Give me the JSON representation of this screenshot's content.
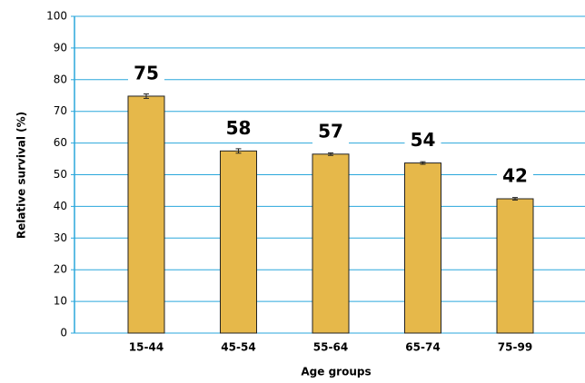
{
  "chart_data": {
    "type": "bar",
    "x_label": "Age groups",
    "y_label": "Relative survival (%)",
    "categories": [
      "15-44",
      "45-54",
      "55-64",
      "65-74",
      "75-99"
    ],
    "values": [
      74.8,
      57.5,
      56.5,
      53.7,
      42.4
    ],
    "value_labels": [
      "75",
      "58",
      "57",
      "54",
      "42"
    ],
    "errors": [
      0.7,
      0.7,
      0.4,
      0.4,
      0.4
    ],
    "color": "#e6b84a",
    "ylim": [
      0,
      100
    ],
    "yticks": [
      0,
      10,
      20,
      30,
      40,
      50,
      60,
      70,
      80,
      90,
      100
    ],
    "grid": true
  }
}
